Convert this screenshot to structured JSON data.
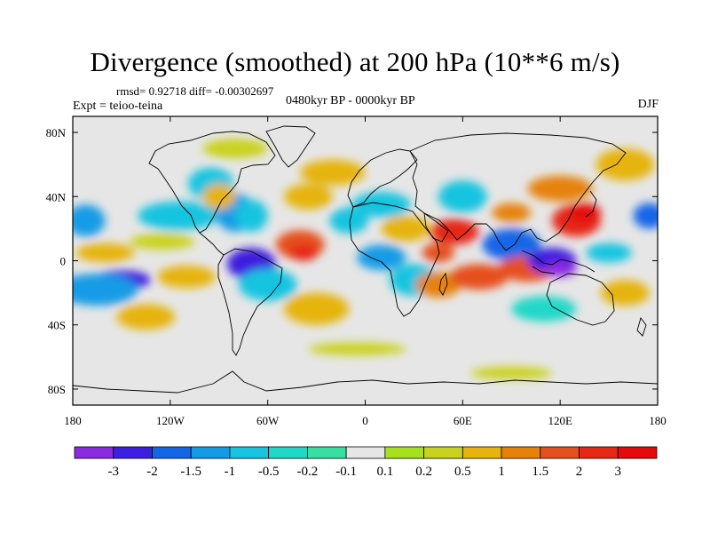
{
  "header": {
    "title": "Divergence (smoothed) at 200 hPa (10**6 m/s)",
    "stats": "rmsd= 0.92718 diff= -0.00302697",
    "experiment": "Expt = teioo-teina",
    "period": "0480kyr BP - 0000kyr BP",
    "season": "DJF"
  },
  "map": {
    "projection": "cylindrical equidistant",
    "lon_range": [
      -180,
      180
    ],
    "lat_range": [
      -90,
      90
    ],
    "x_ticks": [
      {
        "lon": -180,
        "label": "180"
      },
      {
        "lon": -120,
        "label": "120W"
      },
      {
        "lon": -60,
        "label": "60W"
      },
      {
        "lon": 0,
        "label": "0"
      },
      {
        "lon": 60,
        "label": "60E"
      },
      {
        "lon": 120,
        "label": "120E"
      },
      {
        "lon": 180,
        "label": "180"
      }
    ],
    "y_ticks": [
      {
        "lat": 80,
        "label": "80N"
      },
      {
        "lat": 40,
        "label": "40N"
      },
      {
        "lat": 0,
        "label": "0"
      },
      {
        "lat": -40,
        "label": "40S"
      },
      {
        "lat": -80,
        "label": "80S"
      }
    ],
    "background_color": "#e6e6e6",
    "anomalies": [
      {
        "lon": -150,
        "lat": -12,
        "rx": 18,
        "ry": 6,
        "value": -2.2
      },
      {
        "lon": -165,
        "lat": -18,
        "rx": 25,
        "ry": 10,
        "value": -1.2
      },
      {
        "lon": 175,
        "lat": 28,
        "rx": 10,
        "ry": 8,
        "value": -1.6
      },
      {
        "lon": -172,
        "lat": 25,
        "rx": 12,
        "ry": 10,
        "value": -1.2
      },
      {
        "lon": -115,
        "lat": 28,
        "rx": 25,
        "ry": 9,
        "value": -0.7
      },
      {
        "lon": -125,
        "lat": 12,
        "rx": 20,
        "ry": 5,
        "value": 0.3
      },
      {
        "lon": -160,
        "lat": 5,
        "rx": 18,
        "ry": 6,
        "value": 0.5
      },
      {
        "lon": -110,
        "lat": -10,
        "rx": 18,
        "ry": 7,
        "value": 0.6
      },
      {
        "lon": -135,
        "lat": -35,
        "rx": 18,
        "ry": 8,
        "value": 0.6
      },
      {
        "lon": -70,
        "lat": -2,
        "rx": 15,
        "ry": 10,
        "value": -2.1
      },
      {
        "lon": -60,
        "lat": -15,
        "rx": 18,
        "ry": 10,
        "value": -0.9
      },
      {
        "lon": -80,
        "lat": 30,
        "rx": 12,
        "ry": 12,
        "value": -1.2
      },
      {
        "lon": -70,
        "lat": 28,
        "rx": 10,
        "ry": 10,
        "value": -0.8
      },
      {
        "lon": -95,
        "lat": 48,
        "rx": 14,
        "ry": 10,
        "value": -1.0
      },
      {
        "lon": -90,
        "lat": 40,
        "rx": 10,
        "ry": 8,
        "value": 0.8
      },
      {
        "lon": -40,
        "lat": 10,
        "rx": 15,
        "ry": 9,
        "value": 1.9
      },
      {
        "lon": -38,
        "lat": 5,
        "rx": 9,
        "ry": 5,
        "value": 2.4
      },
      {
        "lon": -35,
        "lat": 40,
        "rx": 15,
        "ry": 8,
        "value": 0.6
      },
      {
        "lon": -20,
        "lat": 55,
        "rx": 20,
        "ry": 8,
        "value": 0.5
      },
      {
        "lon": -30,
        "lat": -30,
        "rx": 20,
        "ry": 10,
        "value": 0.7
      },
      {
        "lon": -10,
        "lat": 25,
        "rx": 12,
        "ry": 8,
        "value": -0.7
      },
      {
        "lon": 10,
        "lat": 35,
        "rx": 18,
        "ry": 8,
        "value": -0.8
      },
      {
        "lon": 10,
        "lat": 2,
        "rx": 15,
        "ry": 8,
        "value": -1.5
      },
      {
        "lon": 30,
        "lat": -12,
        "rx": 15,
        "ry": 10,
        "value": -0.7
      },
      {
        "lon": 25,
        "lat": 20,
        "rx": 15,
        "ry": 8,
        "value": 0.9
      },
      {
        "lon": 45,
        "lat": 5,
        "rx": 10,
        "ry": 6,
        "value": 1.8
      },
      {
        "lon": 45,
        "lat": -15,
        "rx": 14,
        "ry": 8,
        "value": 1.3
      },
      {
        "lon": 55,
        "lat": 18,
        "rx": 15,
        "ry": 8,
        "value": 2.2
      },
      {
        "lon": 70,
        "lat": -10,
        "rx": 18,
        "ry": 8,
        "value": 1.8
      },
      {
        "lon": 60,
        "lat": 40,
        "rx": 15,
        "ry": 10,
        "value": -0.6
      },
      {
        "lon": 90,
        "lat": 10,
        "rx": 18,
        "ry": 10,
        "value": -1.6
      },
      {
        "lon": 100,
        "lat": -5,
        "rx": 18,
        "ry": 8,
        "value": 1.7
      },
      {
        "lon": 90,
        "lat": 30,
        "rx": 12,
        "ry": 6,
        "value": 1.2
      },
      {
        "lon": 115,
        "lat": 0,
        "rx": 15,
        "ry": 8,
        "value": -2.3
      },
      {
        "lon": 120,
        "lat": -5,
        "rx": 10,
        "ry": 5,
        "value": -3.2
      },
      {
        "lon": 130,
        "lat": 25,
        "rx": 15,
        "ry": 10,
        "value": 2.4
      },
      {
        "lon": 135,
        "lat": 30,
        "rx": 10,
        "ry": 6,
        "value": 3.2
      },
      {
        "lon": 120,
        "lat": 45,
        "rx": 20,
        "ry": 8,
        "value": 1.2
      },
      {
        "lon": 150,
        "lat": 5,
        "rx": 14,
        "ry": 6,
        "value": -0.8
      },
      {
        "lon": 160,
        "lat": -20,
        "rx": 15,
        "ry": 8,
        "value": 0.8
      },
      {
        "lon": 110,
        "lat": -30,
        "rx": 20,
        "ry": 8,
        "value": -0.5
      },
      {
        "lon": 160,
        "lat": 60,
        "rx": 18,
        "ry": 10,
        "value": 0.6
      },
      {
        "lon": -5,
        "lat": -55,
        "rx": 30,
        "ry": 4,
        "value": 0.25
      },
      {
        "lon": 90,
        "lat": -70,
        "rx": 25,
        "ry": 4,
        "value": 0.3
      },
      {
        "lon": -80,
        "lat": 70,
        "rx": 20,
        "ry": 6,
        "value": 0.25
      }
    ]
  },
  "colorbar": {
    "labels": [
      "-3",
      "-2",
      "-1.5",
      "-1",
      "-0.5",
      "-0.2",
      "-0.1",
      "0.1",
      "0.2",
      "0.5",
      "1",
      "1.5",
      "2",
      "3"
    ],
    "levels": [
      -3,
      -2,
      -1.5,
      -1,
      -0.5,
      -0.2,
      -0.1,
      0.1,
      0.2,
      0.5,
      1,
      1.5,
      2,
      3
    ],
    "colors": [
      "#8a2be2",
      "#3c1fe0",
      "#1466e8",
      "#149be6",
      "#18c4e0",
      "#20d8c8",
      "#36e0a2",
      "#e6e6e6",
      "#a6e01e",
      "#c9d21e",
      "#e6b40a",
      "#e6820a",
      "#e6501e",
      "#e62814",
      "#e60a0a"
    ]
  }
}
